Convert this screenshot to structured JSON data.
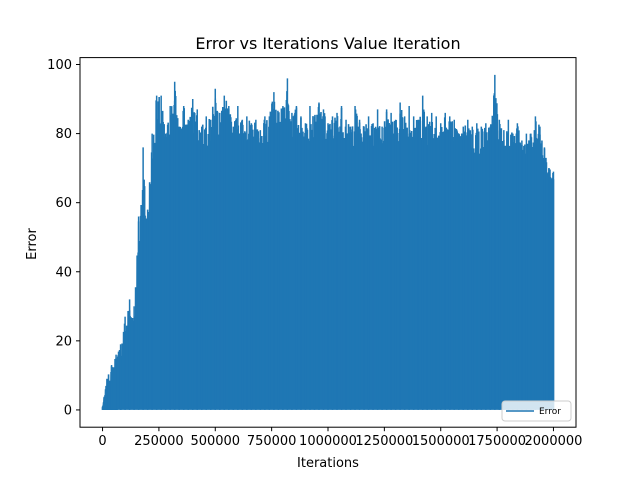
{
  "chart_data": {
    "type": "line",
    "title": "Error vs Iterations Value Iteration",
    "xlabel": "Iterations",
    "ylabel": "Error",
    "xlim": [
      -100000,
      2100000
    ],
    "ylim": [
      -5,
      102
    ],
    "xticks": [
      0,
      250000,
      500000,
      750000,
      1000000,
      1250000,
      1500000,
      1750000,
      2000000
    ],
    "xtick_labels": [
      "0",
      "250000",
      "500000",
      "750000",
      "1000000",
      "1250000",
      "1500000",
      "1750000",
      "2000000"
    ],
    "yticks": [
      0,
      20,
      40,
      60,
      80,
      100
    ],
    "ytick_labels": [
      "0",
      "20",
      "40",
      "60",
      "80",
      "100"
    ],
    "legend_position": "lower-right",
    "series": [
      {
        "name": "Error",
        "color": "#1f77b4",
        "min_value": 0,
        "upper_envelope": [
          [
            0,
            1
          ],
          [
            20000,
            9
          ],
          [
            40000,
            13
          ],
          [
            60000,
            16
          ],
          [
            80000,
            19
          ],
          [
            100000,
            27
          ],
          [
            120000,
            32
          ],
          [
            140000,
            30
          ],
          [
            160000,
            56
          ],
          [
            180000,
            76
          ],
          [
            200000,
            58
          ],
          [
            220000,
            80
          ],
          [
            240000,
            91
          ],
          [
            260000,
            91
          ],
          [
            280000,
            80
          ],
          [
            300000,
            88
          ],
          [
            320000,
            95
          ],
          [
            340000,
            82
          ],
          [
            360000,
            88
          ],
          [
            380000,
            84
          ],
          [
            400000,
            90
          ],
          [
            420000,
            87
          ],
          [
            440000,
            82
          ],
          [
            460000,
            85
          ],
          [
            480000,
            84
          ],
          [
            500000,
            93
          ],
          [
            520000,
            86
          ],
          [
            540000,
            91
          ],
          [
            560000,
            88
          ],
          [
            580000,
            82
          ],
          [
            600000,
            88
          ],
          [
            620000,
            84
          ],
          [
            640000,
            85
          ],
          [
            660000,
            83
          ],
          [
            680000,
            84
          ],
          [
            700000,
            81
          ],
          [
            720000,
            85
          ],
          [
            740000,
            85
          ],
          [
            760000,
            92
          ],
          [
            780000,
            86
          ],
          [
            800000,
            88
          ],
          [
            820000,
            96
          ],
          [
            840000,
            86
          ],
          [
            860000,
            88
          ],
          [
            880000,
            85
          ],
          [
            900000,
            83
          ],
          [
            920000,
            88
          ],
          [
            940000,
            85
          ],
          [
            960000,
            89
          ],
          [
            980000,
            87
          ],
          [
            1000000,
            83
          ],
          [
            1020000,
            85
          ],
          [
            1040000,
            86
          ],
          [
            1060000,
            88
          ],
          [
            1080000,
            84
          ],
          [
            1100000,
            82
          ],
          [
            1120000,
            88
          ],
          [
            1140000,
            84
          ],
          [
            1160000,
            82
          ],
          [
            1180000,
            85
          ],
          [
            1200000,
            83
          ],
          [
            1220000,
            87
          ],
          [
            1240000,
            82
          ],
          [
            1260000,
            87
          ],
          [
            1280000,
            86
          ],
          [
            1300000,
            84
          ],
          [
            1320000,
            89
          ],
          [
            1340000,
            85
          ],
          [
            1360000,
            88
          ],
          [
            1380000,
            85
          ],
          [
            1400000,
            84
          ],
          [
            1420000,
            91
          ],
          [
            1440000,
            85
          ],
          [
            1460000,
            86
          ],
          [
            1480000,
            85
          ],
          [
            1500000,
            83
          ],
          [
            1520000,
            86
          ],
          [
            1540000,
            85
          ],
          [
            1560000,
            84
          ],
          [
            1580000,
            80
          ],
          [
            1600000,
            82
          ],
          [
            1620000,
            84
          ],
          [
            1640000,
            82
          ],
          [
            1660000,
            83
          ],
          [
            1680000,
            82
          ],
          [
            1700000,
            83
          ],
          [
            1720000,
            82
          ],
          [
            1740000,
            97
          ],
          [
            1760000,
            84
          ],
          [
            1780000,
            81
          ],
          [
            1800000,
            84
          ],
          [
            1820000,
            80
          ],
          [
            1840000,
            83
          ],
          [
            1860000,
            78
          ],
          [
            1880000,
            80
          ],
          [
            1900000,
            80
          ],
          [
            1920000,
            85
          ],
          [
            1940000,
            82
          ],
          [
            1960000,
            76
          ],
          [
            1980000,
            70
          ],
          [
            2000000,
            69
          ]
        ],
        "dense_floor": [
          [
            0,
            0
          ],
          [
            50000,
            5
          ],
          [
            100000,
            10
          ],
          [
            150000,
            14
          ],
          [
            200000,
            35
          ],
          [
            240000,
            60
          ],
          [
            300000,
            67
          ],
          [
            500000,
            68
          ],
          [
            1000000,
            68
          ],
          [
            1500000,
            66
          ],
          [
            1800000,
            64
          ],
          [
            2000000,
            62
          ]
        ]
      }
    ]
  }
}
